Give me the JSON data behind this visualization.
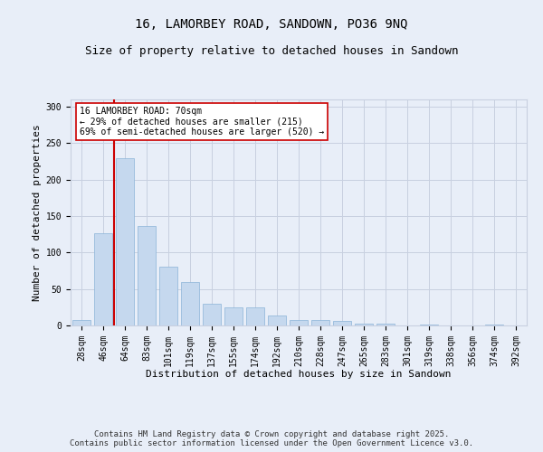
{
  "title": "16, LAMORBEY ROAD, SANDOWN, PO36 9NQ",
  "subtitle": "Size of property relative to detached houses in Sandown",
  "xlabel": "Distribution of detached houses by size in Sandown",
  "ylabel": "Number of detached properties",
  "categories": [
    "28sqm",
    "46sqm",
    "64sqm",
    "83sqm",
    "101sqm",
    "119sqm",
    "137sqm",
    "155sqm",
    "174sqm",
    "192sqm",
    "210sqm",
    "228sqm",
    "247sqm",
    "265sqm",
    "283sqm",
    "301sqm",
    "319sqm",
    "338sqm",
    "356sqm",
    "374sqm",
    "392sqm"
  ],
  "values": [
    7,
    127,
    229,
    136,
    80,
    59,
    30,
    25,
    25,
    14,
    7,
    7,
    6,
    3,
    3,
    0,
    1,
    0,
    0,
    1,
    0
  ],
  "bar_color": "#c5d8ee",
  "bar_edgecolor": "#8ab4d8",
  "bar_width": 0.85,
  "vline_x": 2.0,
  "vline_color": "#cc0000",
  "ylim": [
    0,
    310
  ],
  "yticks": [
    0,
    50,
    100,
    150,
    200,
    250,
    300
  ],
  "annotation_text": "16 LAMORBEY ROAD: 70sqm\n← 29% of detached houses are smaller (215)\n69% of semi-detached houses are larger (520) →",
  "annotation_box_color": "#ffffff",
  "annotation_box_edgecolor": "#cc0000",
  "footer_line1": "Contains HM Land Registry data © Crown copyright and database right 2025.",
  "footer_line2": "Contains public sector information licensed under the Open Government Licence v3.0.",
  "background_color": "#e8eef8",
  "plot_background_color": "#e8eef8",
  "grid_color": "#c8d0e0",
  "title_fontsize": 10,
  "subtitle_fontsize": 9,
  "label_fontsize": 8,
  "tick_fontsize": 7,
  "footer_fontsize": 6.5,
  "annot_fontsize": 7
}
